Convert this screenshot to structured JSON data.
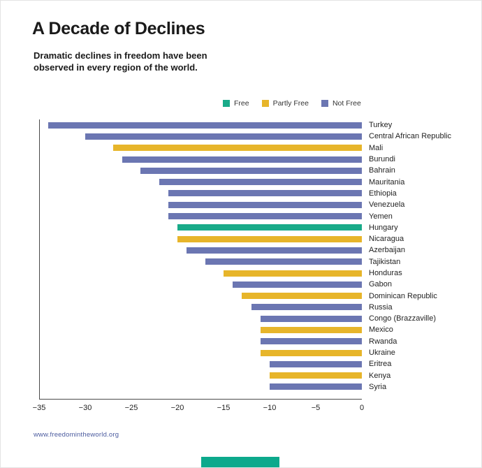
{
  "page": {
    "title": "A Decade of Declines",
    "subtitle_line1": "Dramatic declines in freedom have been",
    "subtitle_line2": "observed in every region of the world."
  },
  "legend": [
    {
      "label": "Free",
      "color": "#19ab89"
    },
    {
      "label": "Partly Free",
      "color": "#e7b52a"
    },
    {
      "label": "Not Free",
      "color": "#6b76b2"
    }
  ],
  "footer": {
    "link": "www.freedomintheworld.org",
    "brand_bar_color": "#0ca98c"
  },
  "chart_data": {
    "type": "bar",
    "orientation": "horizontal",
    "title": "A Decade of Declines",
    "xlabel": "",
    "ylabel": "",
    "xlim": [
      -35,
      0
    ],
    "x_ticks": [
      -35,
      -30,
      -25,
      -20,
      -15,
      -10,
      -5,
      0
    ],
    "grid": false,
    "legend_position": "top",
    "bars": [
      {
        "country": "Turkey",
        "value": -34,
        "status": "Not Free"
      },
      {
        "country": "Central African Republic",
        "value": -30,
        "status": "Not Free"
      },
      {
        "country": "Mali",
        "value": -27,
        "status": "Partly Free"
      },
      {
        "country": "Burundi",
        "value": -26,
        "status": "Not Free"
      },
      {
        "country": "Bahrain",
        "value": -24,
        "status": "Not Free"
      },
      {
        "country": "Mauritania",
        "value": -22,
        "status": "Not Free"
      },
      {
        "country": "Ethiopia",
        "value": -21,
        "status": "Not Free"
      },
      {
        "country": "Venezuela",
        "value": -21,
        "status": "Not Free"
      },
      {
        "country": "Yemen",
        "value": -21,
        "status": "Not Free"
      },
      {
        "country": "Hungary",
        "value": -20,
        "status": "Free"
      },
      {
        "country": "Nicaragua",
        "value": -20,
        "status": "Partly Free"
      },
      {
        "country": "Azerbaijan",
        "value": -19,
        "status": "Not Free"
      },
      {
        "country": "Tajikistan",
        "value": -17,
        "status": "Not Free"
      },
      {
        "country": "Honduras",
        "value": -15,
        "status": "Partly Free"
      },
      {
        "country": "Gabon",
        "value": -14,
        "status": "Not Free"
      },
      {
        "country": "Dominican Republic",
        "value": -13,
        "status": "Partly Free"
      },
      {
        "country": "Russia",
        "value": -12,
        "status": "Not Free"
      },
      {
        "country": "Congo (Brazzaville)",
        "value": -11,
        "status": "Not Free"
      },
      {
        "country": "Mexico",
        "value": -11,
        "status": "Partly Free"
      },
      {
        "country": "Rwanda",
        "value": -11,
        "status": "Not Free"
      },
      {
        "country": "Ukraine",
        "value": -11,
        "status": "Partly Free"
      },
      {
        "country": "Eritrea",
        "value": -10,
        "status": "Not Free"
      },
      {
        "country": "Kenya",
        "value": -10,
        "status": "Partly Free"
      },
      {
        "country": "Syria",
        "value": -10,
        "status": "Not Free"
      }
    ]
  }
}
